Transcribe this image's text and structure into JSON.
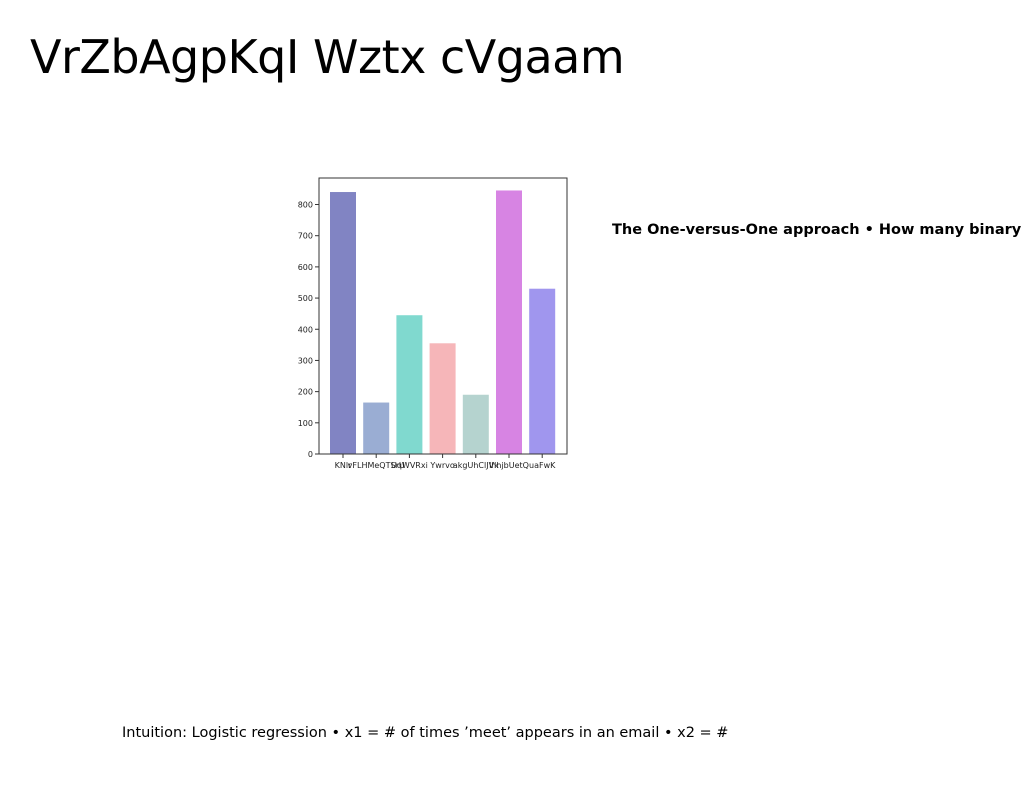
{
  "slide": {
    "title": "VrZbAgpKqI Wztx cVgaam",
    "side_note": "The One-versus-One approach • How many binary",
    "bottom_note": "Intuition: Logistic regression • x1 = # of times ’meet’ appears in an email • x2 = #"
  },
  "chart_data": {
    "type": "bar",
    "categories": [
      "KNlr",
      "vFLHMeQTSrU",
      "UqWVRxi",
      "Ywrvo",
      "akgUhClJVk",
      "lhhjbUetQ",
      "uaFwK"
    ],
    "values": [
      840,
      165,
      445,
      355,
      190,
      845,
      530
    ],
    "colors": [
      "#8184c3",
      "#9aadd3",
      "#80d9cf",
      "#f6b6b9",
      "#b5d3cf",
      "#d784e3",
      "#a096ee"
    ],
    "yticks": [
      "0",
      "100",
      "200",
      "300",
      "400",
      "500",
      "600",
      "700",
      "800"
    ],
    "ylim": [
      0,
      885
    ],
    "title": "",
    "xlabel": "",
    "ylabel": "",
    "grid": false,
    "legend": "none"
  }
}
